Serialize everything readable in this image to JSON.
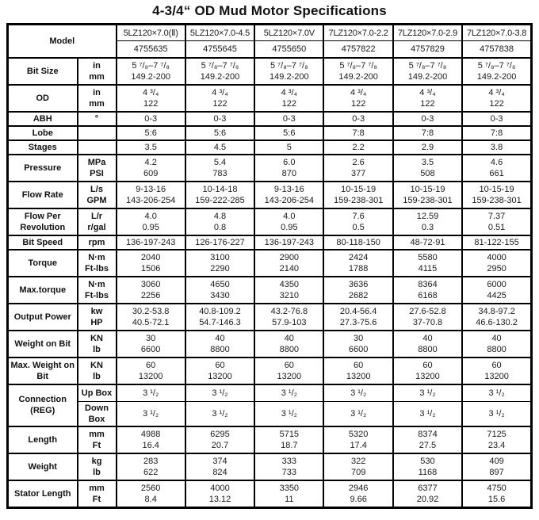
{
  "title": "4-3/4“ OD Mud Motor Specifications",
  "table": {
    "model_row": {
      "label": "Model",
      "names": [
        "5LZ120×7.0(Ⅱ)",
        "5LZ120×7.0-4.5",
        "5LZ120×7.0V",
        "7LZ120×7.0-2.2",
        "7LZ120×7.0-2.9",
        "7LZ120×7.0-3.8"
      ],
      "codes": [
        "4755635",
        "4755645",
        "4755650",
        "4757822",
        "4757829",
        "4757838"
      ]
    },
    "groups": [
      {
        "label": "Bit Size",
        "units": [
          "in",
          "mm"
        ],
        "columns": [
          [
            "5 ⁷/₈–7 ⁷/₈",
            "149.2-200"
          ],
          [
            "5 ⁷/₈–7 ⁷/₈",
            "149.2-200"
          ],
          [
            "5 ⁷/₈–7 ⁷/₈",
            "149.2-200"
          ],
          [
            "5 ⁷/₈–7 ⁷/₈",
            "149.2-200"
          ],
          [
            "5 ⁷/₈–7 ⁷/₈",
            "149.2-200"
          ],
          [
            "5 ⁷/₈–7 ⁷/₈",
            "149.2-200"
          ]
        ]
      },
      {
        "label": "OD",
        "units": [
          "in",
          "mm"
        ],
        "columns": [
          [
            "4 ³/₄",
            "122"
          ],
          [
            "4 ³/₄",
            "122"
          ],
          [
            "4 ³/₄",
            "122"
          ],
          [
            "4 ³/₄",
            "122"
          ],
          [
            "4 ³/₄",
            "122"
          ],
          [
            "4 ³/₄",
            "122"
          ]
        ]
      },
      {
        "label": "ABH",
        "units": [
          "°"
        ],
        "columns": [
          [
            "0-3"
          ],
          [
            "0-3"
          ],
          [
            "0-3"
          ],
          [
            "0-3"
          ],
          [
            "0-3"
          ],
          [
            "0-3"
          ]
        ]
      },
      {
        "label": "Lobe",
        "units": [
          ""
        ],
        "columns": [
          [
            "5:6"
          ],
          [
            "5:6"
          ],
          [
            "5:6"
          ],
          [
            "7:8"
          ],
          [
            "7:8"
          ],
          [
            "7:8"
          ]
        ]
      },
      {
        "label": "Stages",
        "units": [
          ""
        ],
        "columns": [
          [
            "3.5"
          ],
          [
            "4.5"
          ],
          [
            "5"
          ],
          [
            "2.2"
          ],
          [
            "2.9"
          ],
          [
            "3.8"
          ]
        ]
      },
      {
        "label": "Pressure",
        "units": [
          "MPa",
          "PSI"
        ],
        "columns": [
          [
            "4.2",
            "609"
          ],
          [
            "5.4",
            "783"
          ],
          [
            "6.0",
            "870"
          ],
          [
            "2.6",
            "377"
          ],
          [
            "3.5",
            "508"
          ],
          [
            "4.6",
            "661"
          ]
        ]
      },
      {
        "label": "Flow Rate",
        "units": [
          "L/s",
          "GPM"
        ],
        "columns": [
          [
            "9-13-16",
            "143-206-254"
          ],
          [
            "10-14-18",
            "159-222-285"
          ],
          [
            "9-13-16",
            "143-206-254"
          ],
          [
            "10-15-19",
            "159-238-301"
          ],
          [
            "10-15-19",
            "159-238-301"
          ],
          [
            "10-15-19",
            "159-238-301"
          ]
        ]
      },
      {
        "label": "Flow Per Revolution",
        "units": [
          "L/r",
          "r/gal"
        ],
        "columns": [
          [
            "4.0",
            "0.95"
          ],
          [
            "4.8",
            "0.8"
          ],
          [
            "4.0",
            "0.95"
          ],
          [
            "7.6",
            "0.5"
          ],
          [
            "12.59",
            "0.3"
          ],
          [
            "7.37",
            "0.51"
          ]
        ]
      },
      {
        "label": "Bit Speed",
        "units": [
          "rpm"
        ],
        "columns": [
          [
            "136-197-243"
          ],
          [
            "126-176-227"
          ],
          [
            "136-197-243"
          ],
          [
            "80-118-150"
          ],
          [
            "48-72-91"
          ],
          [
            "81-122-155"
          ]
        ]
      },
      {
        "label": "Torque",
        "units": [
          "N·m",
          "Ft-lbs"
        ],
        "columns": [
          [
            "2040",
            "1506"
          ],
          [
            "3100",
            "2290"
          ],
          [
            "2900",
            "2140"
          ],
          [
            "2424",
            "1788"
          ],
          [
            "5580",
            "4115"
          ],
          [
            "4000",
            "2950"
          ]
        ]
      },
      {
        "label": "Max.torque",
        "units": [
          "N·m",
          "Ft-lbs"
        ],
        "columns": [
          [
            "3060",
            "2256"
          ],
          [
            "4650",
            "3430"
          ],
          [
            "4350",
            "3210"
          ],
          [
            "3636",
            "2682"
          ],
          [
            "8364",
            "6168"
          ],
          [
            "6000",
            "4425"
          ]
        ]
      },
      {
        "label": "Output Power",
        "units": [
          "kw",
          "HP"
        ],
        "columns": [
          [
            "30.2-53.8",
            "40.5-72.1"
          ],
          [
            "40.8-109.2",
            "54.7-146.3"
          ],
          [
            "43.2-76.8",
            "57.9-103"
          ],
          [
            "20.4-56.4",
            "27.3-75.6"
          ],
          [
            "27.6-52.8",
            "37-70.8"
          ],
          [
            "34.8-97.2",
            "46.6-130.2"
          ]
        ]
      },
      {
        "label": "Weight on Bit",
        "units": [
          "KN",
          "lb"
        ],
        "columns": [
          [
            "30",
            "6600"
          ],
          [
            "40",
            "8800"
          ],
          [
            "40",
            "8800"
          ],
          [
            "30",
            "6600"
          ],
          [
            "40",
            "8800"
          ],
          [
            "40",
            "8800"
          ]
        ]
      },
      {
        "label": "Max. Weight on Bit",
        "units": [
          "KN",
          "lb"
        ],
        "columns": [
          [
            "60",
            "13200"
          ],
          [
            "60",
            "13200"
          ],
          [
            "60",
            "13200"
          ],
          [
            "60",
            "13200"
          ],
          [
            "60",
            "13200"
          ],
          [
            "60",
            "13200"
          ]
        ]
      },
      {
        "label": "Connection (REG)",
        "split": true,
        "units": [
          "Up Box",
          "Down Box"
        ],
        "columns": [
          [
            "3 ¹/₂",
            "3 ¹/₂"
          ],
          [
            "3 ¹/₂",
            "3 ¹/₂"
          ],
          [
            "3 ¹/₂",
            "3 ¹/₂"
          ],
          [
            "3 ¹/₂",
            "3 ¹/₂"
          ],
          [
            "3 ¹/₂",
            "3 ¹/₂"
          ],
          [
            "3 ¹/₂",
            "3 ¹/₂"
          ]
        ]
      },
      {
        "label": "Length",
        "units": [
          "mm",
          "Ft"
        ],
        "columns": [
          [
            "4988",
            "16.4"
          ],
          [
            "6295",
            "20.7"
          ],
          [
            "5715",
            "18.7"
          ],
          [
            "5320",
            "17.4"
          ],
          [
            "8374",
            "27.5"
          ],
          [
            "7125",
            "23.4"
          ]
        ]
      },
      {
        "label": "Weight",
        "units": [
          "kg",
          "lb"
        ],
        "columns": [
          [
            "283",
            "622"
          ],
          [
            "374",
            "824"
          ],
          [
            "333",
            "733"
          ],
          [
            "322",
            "709"
          ],
          [
            "530",
            "1168"
          ],
          [
            "409",
            "897"
          ]
        ]
      },
      {
        "label": "Stator Length",
        "units": [
          "mm",
          "Ft"
        ],
        "columns": [
          [
            "2560",
            "8.4"
          ],
          [
            "4000",
            "13.12"
          ],
          [
            "3350",
            "11"
          ],
          [
            "2946",
            "9.66"
          ],
          [
            "6377",
            "20.92"
          ],
          [
            "4750",
            "15.6"
          ]
        ]
      }
    ]
  }
}
